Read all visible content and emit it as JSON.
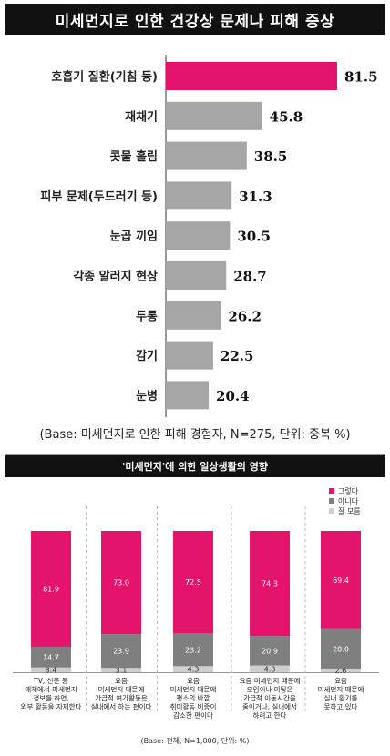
{
  "chart_data": [
    {
      "type": "bar",
      "orientation": "horizontal",
      "title": "미세먼지로 인한 건강상 문제나 피해 증상",
      "categories": [
        "호흡기 질환(기침 등)",
        "재채기",
        "콧물 흘림",
        "피부 문제(두드러기 등)",
        "눈곱 끼임",
        "각종 알러지 현상",
        "두통",
        "감기",
        "눈병"
      ],
      "values": [
        81.5,
        45.8,
        38.5,
        31.3,
        30.5,
        28.7,
        26.2,
        22.5,
        20.4
      ],
      "value_labels": [
        "81.5",
        "45.8",
        "38.5",
        "31.3",
        "30.5",
        "28.7",
        "26.2",
        "22.5",
        "20.4"
      ],
      "highlight_color": "#e4136b",
      "bar_color": "#a6a6a6",
      "note": "(Base: 미세먼지로 인한 피해 경험자, N=275, 단위: 중복 %)"
    },
    {
      "type": "bar",
      "stacked": true,
      "title": "'미세먼지'에 의한 일상생활의 영향",
      "categories": [
        "TV, 신문 등 매체에서 미세먼지 경보를 하면, 외부 활동을 자제한다",
        "요즘 미세먼지 때문에 가급적 여가활동은 실내에서 하는 편이다",
        "요즘 미세먼지 때문에 평소의 바깥 취미활동 비중이 감소한 편이다",
        "요즘 미세먼지 때문에 모임이나 미팅은 가급적 이동시간을 줄이거나, 실내에서 하려고 한다",
        "요즘 미세먼지 때문에 실내 환기를 못하고 있다"
      ],
      "category_lines": [
        [
          "TV, 신문 등",
          "매체에서 미세먼지",
          "경보를 하면,",
          "외부 활동을 자제한다"
        ],
        [
          "요즘",
          "미세먼지 때문에",
          "가급적 여가활동은",
          "실내에서 하는 편이다"
        ],
        [
          "요즘",
          "미세먼지 때문에",
          "평소의 바깥",
          "취미활동 비중이",
          "감소한 편이다"
        ],
        [
          "요즘 미세먼지 때문에",
          "모임이나 미팅은",
          "가급적 이동시간을",
          "줄이거나, 실내에서",
          "하려고 한다"
        ],
        [
          "요즘",
          "미세먼지 때문에",
          "실내 환기를",
          "못하고 있다"
        ]
      ],
      "series": [
        {
          "name": "그렇다",
          "color": "#e4136b",
          "values": [
            81.9,
            73.0,
            72.5,
            74.3,
            69.4
          ],
          "labels": [
            "81.9",
            "73.0",
            "72.5",
            "74.3",
            "69.4"
          ]
        },
        {
          "name": "아니다",
          "color": "#7f7f7f",
          "values": [
            14.7,
            23.9,
            23.2,
            20.9,
            28.0
          ],
          "labels": [
            "14.7",
            "23.9",
            "23.2",
            "20.9",
            "28.0"
          ]
        },
        {
          "name": "잘 모름",
          "color": "#cfcfcf",
          "values": [
            3.4,
            3.1,
            4.3,
            4.8,
            2.6
          ],
          "labels": [
            "3.4",
            "3.1",
            "4.3",
            "4.8",
            "2.6"
          ]
        }
      ],
      "legend_position": "top-right",
      "ylim": [
        0,
        100
      ],
      "note": "(Base: 전체, N=1,000, 단위: %)"
    }
  ]
}
